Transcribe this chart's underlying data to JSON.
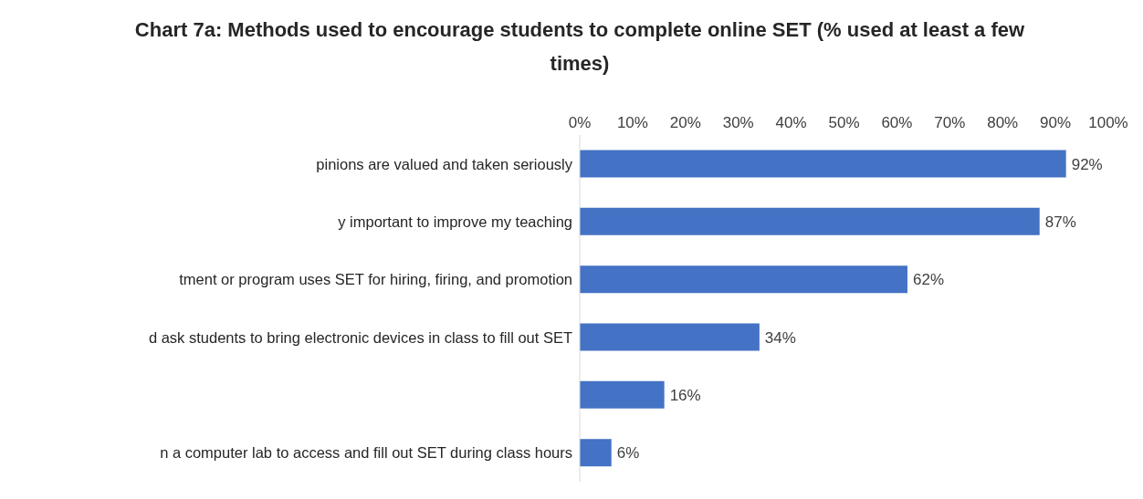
{
  "chart_data": {
    "type": "bar",
    "orientation": "horizontal",
    "title": "Chart 7a: Methods used to encourage students to complete online SET (% used at least a few times)",
    "categories": [
      "pinions are valued and taken seriously",
      "y important to improve my teaching",
      "tment or program uses SET for hiring, firing, and promotion",
      "d ask students to bring electronic devices in class to fill out SET",
      null,
      "n a computer lab to access and fill out SET during class hours"
    ],
    "values": [
      92,
      87,
      62,
      34,
      16,
      6
    ],
    "value_labels": [
      "92%",
      "87%",
      "62%",
      "34%",
      "16%",
      "6%"
    ],
    "color": "#4472c4",
    "xlim": [
      0,
      100
    ],
    "xticks": [
      {
        "value": 0,
        "label": "0%"
      },
      {
        "value": 10,
        "label": "10%"
      },
      {
        "value": 20,
        "label": "20%"
      },
      {
        "value": 30,
        "label": "30%"
      },
      {
        "value": 40,
        "label": "40%"
      },
      {
        "value": 50,
        "label": "50%"
      },
      {
        "value": 60,
        "label": "60%"
      },
      {
        "value": 70,
        "label": "70%"
      },
      {
        "value": 80,
        "label": "80%"
      },
      {
        "value": 90,
        "label": "90%"
      },
      {
        "value": 100,
        "label": "100%"
      }
    ]
  }
}
